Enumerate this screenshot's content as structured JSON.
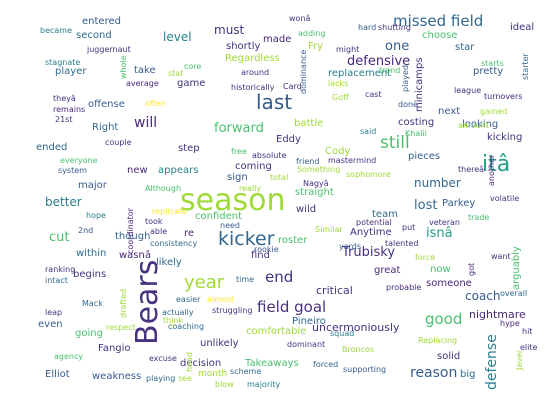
{
  "palette": {
    "dark_purple": "#46327e",
    "deep_purple": "#482878",
    "blue": "#365c8d",
    "steel": "#31688e",
    "teal": "#277f8e",
    "green_teal": "#1fa187",
    "green": "#4ac16d",
    "lime": "#a0da39",
    "yellow": "#fde725"
  },
  "words": [
    {
      "text": "season",
      "color": "#a0da39"
    },
    {
      "text": "Bears",
      "color": "#46327e"
    },
    {
      "text": "kicker",
      "color": "#31688e"
    },
    {
      "text": "itâ",
      "color": "#1fa187"
    },
    {
      "text": "last",
      "color": "#365c8d"
    },
    {
      "text": "year",
      "color": "#a0da39"
    },
    {
      "text": "missed field",
      "color": "#31688e"
    },
    {
      "text": "field goal",
      "color": "#46327e"
    },
    {
      "text": "still",
      "color": "#4ac16d"
    },
    {
      "text": "forward",
      "color": "#4ac16d"
    },
    {
      "text": "reason",
      "color": "#365c8d"
    },
    {
      "text": "good",
      "color": "#4ac16d"
    },
    {
      "text": "will",
      "color": "#482878"
    },
    {
      "text": "end",
      "color": "#46327e"
    },
    {
      "text": "defense",
      "color": "#277f8e"
    },
    {
      "text": "cut",
      "color": "#4ac16d"
    },
    {
      "text": "defensive",
      "color": "#482878"
    },
    {
      "text": "isnâ",
      "color": "#1fa187"
    },
    {
      "text": "Trubisky",
      "color": "#46327e"
    },
    {
      "text": "coach",
      "color": "#365c8d"
    },
    {
      "text": "lost",
      "color": "#31688e"
    },
    {
      "text": "one",
      "color": "#365c8d"
    },
    {
      "text": "must",
      "color": "#46327e"
    },
    {
      "text": "level",
      "color": "#277f8e"
    },
    {
      "text": "better",
      "color": "#277f8e"
    },
    {
      "text": "number",
      "color": "#31688e"
    },
    {
      "text": "uncermoniously",
      "color": "#46327e"
    },
    {
      "text": "critical",
      "color": "#46327e"
    },
    {
      "text": "nightmare",
      "color": "#482878"
    },
    {
      "text": "entered",
      "color": "#365c8d"
    },
    {
      "text": "second",
      "color": "#31688e"
    },
    {
      "text": "ideal",
      "color": "#46327e"
    },
    {
      "text": "star",
      "color": "#31688e"
    },
    {
      "text": "choose",
      "color": "#4ac16d"
    },
    {
      "text": "made",
      "color": "#482878"
    },
    {
      "text": "shortly",
      "color": "#46327e"
    },
    {
      "text": "Regardless",
      "color": "#a0da39"
    },
    {
      "text": "Fry",
      "color": "#a0da39"
    },
    {
      "text": "replacement",
      "color": "#277f8e"
    },
    {
      "text": "pretty",
      "color": "#365c8d"
    },
    {
      "text": "minicamps",
      "color": "#46327e"
    },
    {
      "text": "player",
      "color": "#31688e"
    },
    {
      "text": "take",
      "color": "#365c8d"
    },
    {
      "text": "game",
      "color": "#46327e"
    },
    {
      "text": "offense",
      "color": "#365c8d"
    },
    {
      "text": "next",
      "color": "#365c8d"
    },
    {
      "text": "costing",
      "color": "#46327e"
    },
    {
      "text": "looking",
      "color": "#365c8d"
    },
    {
      "text": "kicking",
      "color": "#46327e"
    },
    {
      "text": "battle",
      "color": "#a0da39"
    },
    {
      "text": "Eddy",
      "color": "#46327e"
    },
    {
      "text": "Cody",
      "color": "#a0da39"
    },
    {
      "text": "pieces",
      "color": "#365c8d"
    },
    {
      "text": "Right",
      "color": "#31688e"
    },
    {
      "text": "ended",
      "color": "#31688e"
    },
    {
      "text": "step",
      "color": "#46327e"
    },
    {
      "text": "coming",
      "color": "#46327e"
    },
    {
      "text": "new",
      "color": "#482878"
    },
    {
      "text": "sign",
      "color": "#365c8d"
    },
    {
      "text": "appears",
      "color": "#277f8e"
    },
    {
      "text": "major",
      "color": "#365c8d"
    },
    {
      "text": "straight",
      "color": "#4ac16d"
    },
    {
      "text": "Parkey",
      "color": "#365c8d"
    },
    {
      "text": "confident",
      "color": "#4ac16d"
    },
    {
      "text": "wild",
      "color": "#46327e"
    },
    {
      "text": "team",
      "color": "#31688e"
    },
    {
      "text": "Anytime",
      "color": "#46327e"
    },
    {
      "text": "re",
      "color": "#482878"
    },
    {
      "text": "though",
      "color": "#31688e"
    },
    {
      "text": "roster",
      "color": "#4ac16d"
    },
    {
      "text": "within",
      "color": "#31688e"
    },
    {
      "text": "wasnâ",
      "color": "#482878"
    },
    {
      "text": "likely",
      "color": "#31688e"
    },
    {
      "text": "find",
      "color": "#46327e"
    },
    {
      "text": "great",
      "color": "#482878"
    },
    {
      "text": "now",
      "color": "#4ac16d"
    },
    {
      "text": "someone",
      "color": "#482878"
    },
    {
      "text": "begins",
      "color": "#46327e"
    },
    {
      "text": "arguably",
      "color": "#4ac16d"
    },
    {
      "text": "even",
      "color": "#365c8d"
    },
    {
      "text": "going",
      "color": "#4ac16d"
    },
    {
      "text": "Pineiro",
      "color": "#31688e"
    },
    {
      "text": "comfortable",
      "color": "#a0da39"
    },
    {
      "text": "unlikely",
      "color": "#46327e"
    },
    {
      "text": "Fangio",
      "color": "#46327e"
    },
    {
      "text": "decision",
      "color": "#46327e"
    },
    {
      "text": "Takeaways",
      "color": "#4ac16d"
    },
    {
      "text": "solid",
      "color": "#46327e"
    },
    {
      "text": "big",
      "color": "#31688e"
    },
    {
      "text": "Elliot",
      "color": "#365c8d"
    },
    {
      "text": "weakness",
      "color": "#365c8d"
    },
    {
      "text": "month",
      "color": "#a0da39"
    },
    {
      "text": "juggernaut",
      "color": "#46327e"
    },
    {
      "text": "average",
      "color": "#482878"
    },
    {
      "text": "historically",
      "color": "#46327e"
    },
    {
      "text": "Card",
      "color": "#46327e"
    },
    {
      "text": "theyâ",
      "color": "#46327e"
    },
    {
      "text": "time",
      "color": "#31688e"
    },
    {
      "text": "playing",
      "color": "#31688e"
    },
    {
      "text": "supporting",
      "color": "#365c8d"
    },
    {
      "text": "forced",
      "color": "#31688e"
    },
    {
      "text": "Broncos",
      "color": "#a0da39"
    },
    {
      "text": "Replacing",
      "color": "#a0da39"
    },
    {
      "text": "squad",
      "color": "#277f8e"
    },
    {
      "text": "dominant",
      "color": "#46327e"
    },
    {
      "text": "majority",
      "color": "#277f8e"
    },
    {
      "text": "blow",
      "color": "#a0da39"
    },
    {
      "text": "scheme",
      "color": "#31688e"
    },
    {
      "text": "excuse",
      "color": "#46327e"
    },
    {
      "text": "coaching",
      "color": "#31688e"
    },
    {
      "text": "struggling",
      "color": "#46327e"
    },
    {
      "text": "actually",
      "color": "#31688e"
    },
    {
      "text": "easier",
      "color": "#31688e"
    },
    {
      "text": "almost",
      "color": "#fde725"
    },
    {
      "text": "think",
      "color": "#a0da39"
    },
    {
      "text": "Mack",
      "color": "#31688e"
    },
    {
      "text": "leap",
      "color": "#46327e"
    },
    {
      "text": "intact",
      "color": "#31688e"
    },
    {
      "text": "ranking",
      "color": "#46327e"
    },
    {
      "text": "agency",
      "color": "#4ac16d"
    },
    {
      "text": "respect",
      "color": "#a0da39"
    },
    {
      "text": "drafted",
      "color": "#a0da39"
    },
    {
      "text": "hype",
      "color": "#482878"
    },
    {
      "text": "overall",
      "color": "#31688e"
    },
    {
      "text": "hit",
      "color": "#46327e"
    },
    {
      "text": "elite",
      "color": "#46327e"
    },
    {
      "text": "Javer",
      "color": "#a0da39"
    },
    {
      "text": "want",
      "color": "#46327e"
    },
    {
      "text": "probable",
      "color": "#482878"
    },
    {
      "text": "force",
      "color": "#a0da39"
    },
    {
      "text": "got",
      "color": "#482878"
    },
    {
      "text": "talented",
      "color": "#46327e"
    },
    {
      "text": "veteran",
      "color": "#46327e"
    },
    {
      "text": "yards",
      "color": "#365c8d"
    },
    {
      "text": "potential",
      "color": "#46327e"
    },
    {
      "text": "put",
      "color": "#46327e"
    },
    {
      "text": "trade",
      "color": "#4ac16d"
    },
    {
      "text": "volatile",
      "color": "#46327e"
    },
    {
      "text": "Similar",
      "color": "#a0da39"
    },
    {
      "text": "consistency",
      "color": "#31688e"
    },
    {
      "text": "rookie",
      "color": "#365c8d"
    },
    {
      "text": "need",
      "color": "#365c8d"
    },
    {
      "text": "took",
      "color": "#46327e"
    },
    {
      "text": "able",
      "color": "#46327e"
    },
    {
      "text": "replicate",
      "color": "#fde725"
    },
    {
      "text": "2nd",
      "color": "#365c8d"
    },
    {
      "text": "hope",
      "color": "#277f8e"
    },
    {
      "text": "coordinator",
      "color": "#482878"
    },
    {
      "text": "Although",
      "color": "#4ac16d"
    },
    {
      "text": "everyone",
      "color": "#4ac16d"
    },
    {
      "text": "system",
      "color": "#365c8d"
    },
    {
      "text": "couple",
      "color": "#46327e"
    },
    {
      "text": "absolute",
      "color": "#46327e"
    },
    {
      "text": "free",
      "color": "#4ac16d"
    },
    {
      "text": "really",
      "color": "#a0da39"
    },
    {
      "text": "total",
      "color": "#a0da39"
    },
    {
      "text": "Something",
      "color": "#a0da39"
    },
    {
      "text": "friend",
      "color": "#365c8d"
    },
    {
      "text": "mastermind",
      "color": "#46327e"
    },
    {
      "text": "Nagyâ",
      "color": "#46327e"
    },
    {
      "text": "sophomore",
      "color": "#a0da39"
    },
    {
      "text": "thereâ",
      "color": "#46327e"
    },
    {
      "text": "another",
      "color": "#482878"
    },
    {
      "text": "amount",
      "color": "#a0da39"
    },
    {
      "text": "Khalil",
      "color": "#4ac16d"
    },
    {
      "text": "said",
      "color": "#277f8e"
    },
    {
      "text": "Goff",
      "color": "#a0da39"
    },
    {
      "text": "cast",
      "color": "#46327e"
    },
    {
      "text": "done",
      "color": "#365c8d"
    },
    {
      "text": "gained",
      "color": "#a0da39"
    },
    {
      "text": "turnovers",
      "color": "#482878"
    },
    {
      "text": "league",
      "color": "#46327e"
    },
    {
      "text": "trend",
      "color": "#4ac16d"
    },
    {
      "text": "played",
      "color": "#365c8d"
    },
    {
      "text": "lacks",
      "color": "#a0da39"
    },
    {
      "text": "dominance",
      "color": "#365c8d"
    },
    {
      "text": "around",
      "color": "#46327e"
    },
    {
      "text": "core",
      "color": "#4ac16d"
    },
    {
      "text": "stat",
      "color": "#a0da39"
    },
    {
      "text": "whole",
      "color": "#4ac16d"
    },
    {
      "text": "often",
      "color": "#fde725"
    },
    {
      "text": "21st",
      "color": "#46327e"
    },
    {
      "text": "remains",
      "color": "#482878"
    },
    {
      "text": "stagnate",
      "color": "#277f8e"
    },
    {
      "text": "became",
      "color": "#277f8e"
    },
    {
      "text": "wonâ",
      "color": "#46327e"
    },
    {
      "text": "adding",
      "color": "#4ac16d"
    },
    {
      "text": "hard",
      "color": "#365c8d"
    },
    {
      "text": "shutting",
      "color": "#46327e"
    },
    {
      "text": "might",
      "color": "#46327e"
    },
    {
      "text": "starts",
      "color": "#4ac16d"
    },
    {
      "text": "starter",
      "color": "#31688e"
    },
    {
      "text": "head",
      "color": "#a0da39"
    },
    {
      "text": "see",
      "color": "#a0da39"
    }
  ]
}
